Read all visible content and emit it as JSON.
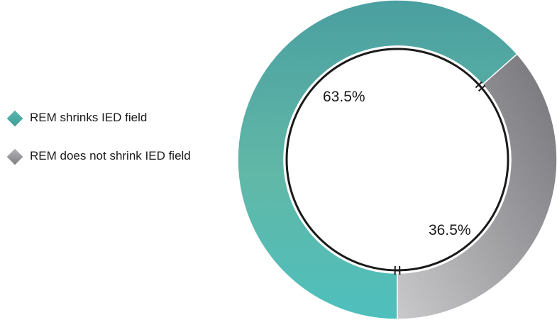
{
  "chart_data": {
    "type": "pie",
    "style": "donut",
    "categories": [
      "REM shrinks IED field",
      "REM does not shrink IED field"
    ],
    "values": [
      63.5,
      36.5
    ],
    "data_labels": [
      "63.5%",
      "36.5%"
    ],
    "colors": [
      "#4fb3aa",
      "#9a9a9c"
    ],
    "legend_position": "left"
  }
}
